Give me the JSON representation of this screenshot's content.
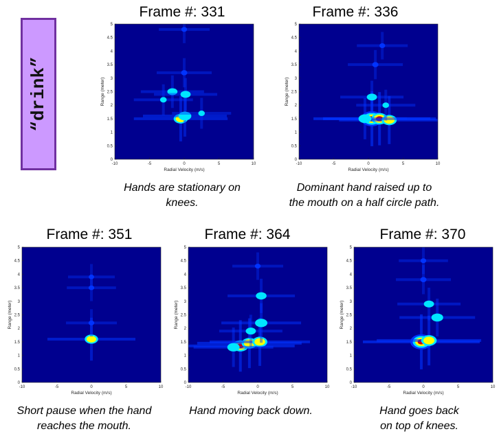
{
  "gesture_label": "“drink”",
  "colormap": {
    "background": "#00008f",
    "low": "#0033ff",
    "mid": "#00e6ff",
    "high": "#ffff00",
    "peak": "#d40000"
  },
  "chart_data": [
    {
      "type": "heatmap",
      "title": "Frame #: 331",
      "caption": [
        "Hands are stationary on",
        "knees."
      ],
      "xlabel": "Radial Velocity (m/s)",
      "ylabel": "Range (meter)",
      "xlim": [
        -10,
        10
      ],
      "ylim": [
        0,
        5
      ],
      "xticks": [
        -10,
        -5,
        0,
        5,
        10
      ],
      "yticks": [
        0,
        0.5,
        1,
        1.5,
        2,
        2.5,
        3,
        3.5,
        4,
        4.5,
        5
      ],
      "hotspots": [
        {
          "x": -0.5,
          "y": 1.5,
          "intensity": 0.72
        },
        {
          "x": 0.1,
          "y": 1.6,
          "intensity": 0.6
        },
        {
          "x": -1.7,
          "y": 2.5,
          "intensity": 0.35
        },
        {
          "x": 0.2,
          "y": 2.4,
          "intensity": 0.35
        },
        {
          "x": -3.0,
          "y": 2.2,
          "intensity": 0.3
        },
        {
          "x": 2.5,
          "y": 1.7,
          "intensity": 0.3
        },
        {
          "x": 0.0,
          "y": 3.2,
          "intensity": 0.25
        },
        {
          "x": 0.0,
          "y": 4.8,
          "intensity": 0.2
        }
      ]
    },
    {
      "type": "heatmap",
      "title": "Frame #: 336",
      "caption": [
        "Dominant hand raised up to",
        "the mouth on a half circle path."
      ],
      "xlabel": "Radial Velocity (m/s)",
      "ylabel": "Range (meter)",
      "xlim": [
        -10,
        10
      ],
      "ylim": [
        0,
        5
      ],
      "xticks": [
        -10,
        -5,
        0,
        5,
        10
      ],
      "yticks": [
        0,
        0.5,
        1,
        1.5,
        2,
        2.5,
        3,
        3.5,
        4,
        4.5,
        5
      ],
      "hotspots": [
        {
          "x": 0.5,
          "y": 1.5,
          "intensity": 1.0
        },
        {
          "x": 1.6,
          "y": 1.5,
          "intensity": 0.95
        },
        {
          "x": 3.0,
          "y": 1.45,
          "intensity": 0.8
        },
        {
          "x": -0.5,
          "y": 1.5,
          "intensity": 0.6
        },
        {
          "x": 0.5,
          "y": 2.3,
          "intensity": 0.35
        },
        {
          "x": 2.5,
          "y": 2.0,
          "intensity": 0.3
        },
        {
          "x": 1.0,
          "y": 3.5,
          "intensity": 0.25
        },
        {
          "x": 2.0,
          "y": 4.2,
          "intensity": 0.2
        }
      ]
    },
    {
      "type": "heatmap",
      "title": "Frame #: 351",
      "caption": [
        "Short pause when the hand",
        "reaches the mouth."
      ],
      "xlabel": "Radial Velocity (m/s)",
      "ylabel": "Range (meter)",
      "xlim": [
        -10,
        10
      ],
      "ylim": [
        0,
        5
      ],
      "xticks": [
        -10,
        -5,
        0,
        5,
        10
      ],
      "yticks": [
        0,
        0.5,
        1,
        1.5,
        2,
        2.5,
        3,
        3.5,
        4,
        4.5,
        5
      ],
      "hotspots": [
        {
          "x": 0.0,
          "y": 1.6,
          "intensity": 0.65
        },
        {
          "x": 0.0,
          "y": 2.2,
          "intensity": 0.2
        },
        {
          "x": 0.0,
          "y": 3.5,
          "intensity": 0.18
        },
        {
          "x": 0.0,
          "y": 3.9,
          "intensity": 0.15
        }
      ]
    },
    {
      "type": "heatmap",
      "title": "Frame #: 364",
      "caption": [
        "Hand moving back down."
      ],
      "xlabel": "Radial Velocity (m/s)",
      "ylabel": "Range (meter)",
      "xlim": [
        -10,
        10
      ],
      "ylim": [
        0,
        5
      ],
      "xticks": [
        -10,
        -5,
        0,
        5,
        10
      ],
      "yticks": [
        0,
        0.5,
        1,
        1.5,
        2,
        2.5,
        3,
        3.5,
        4,
        4.5,
        5
      ],
      "hotspots": [
        {
          "x": -2.5,
          "y": 1.35,
          "intensity": 0.9
        },
        {
          "x": -1.2,
          "y": 1.45,
          "intensity": 0.85
        },
        {
          "x": 0.3,
          "y": 1.5,
          "intensity": 0.8
        },
        {
          "x": -3.5,
          "y": 1.3,
          "intensity": 0.55
        },
        {
          "x": 0.5,
          "y": 2.2,
          "intensity": 0.55
        },
        {
          "x": 0.5,
          "y": 3.2,
          "intensity": 0.4
        },
        {
          "x": -1.0,
          "y": 1.9,
          "intensity": 0.35
        },
        {
          "x": 0.0,
          "y": 4.3,
          "intensity": 0.2
        }
      ]
    },
    {
      "type": "heatmap",
      "title": "Frame #: 370",
      "caption": [
        "Hand goes back",
        "on top of knees."
      ],
      "xlabel": "Radial Velocity (m/s)",
      "ylabel": "Range (meter)",
      "xlim": [
        -10,
        10
      ],
      "ylim": [
        0,
        5
      ],
      "xticks": [
        -10,
        -5,
        0,
        5,
        10
      ],
      "yticks": [
        0,
        0.5,
        1,
        1.5,
        2,
        2.5,
        3,
        3.5,
        4,
        4.5,
        5
      ],
      "hotspots": [
        {
          "x": -0.3,
          "y": 1.5,
          "intensity": 1.0
        },
        {
          "x": 0.8,
          "y": 1.55,
          "intensity": 0.85
        },
        {
          "x": 2.0,
          "y": 2.4,
          "intensity": 0.5
        },
        {
          "x": 0.8,
          "y": 2.9,
          "intensity": 0.35
        },
        {
          "x": 0.0,
          "y": 3.8,
          "intensity": 0.25
        },
        {
          "x": 0.0,
          "y": 4.5,
          "intensity": 0.18
        }
      ]
    }
  ]
}
